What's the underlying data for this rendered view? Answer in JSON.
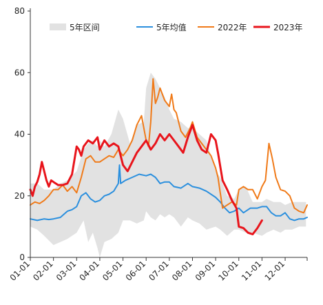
{
  "chart_data": {
    "type": "line",
    "title": "",
    "xlabel": "",
    "ylabel": "",
    "ylim": [
      0,
      80
    ],
    "yticks": [
      0,
      20,
      40,
      60,
      80
    ],
    "xlim": [
      1,
      12.95
    ],
    "xticks": [
      {
        "value": 1,
        "label": "01-01"
      },
      {
        "value": 2,
        "label": "02-01"
      },
      {
        "value": 3,
        "label": "03-01"
      },
      {
        "value": 4,
        "label": "04-01"
      },
      {
        "value": 5,
        "label": "05-01"
      },
      {
        "value": 6,
        "label": "06-01"
      },
      {
        "value": 7,
        "label": "07-01"
      },
      {
        "value": 8,
        "label": "08-01"
      },
      {
        "value": 9,
        "label": "09-01"
      },
      {
        "value": 10,
        "label": "10-01"
      },
      {
        "value": 11,
        "label": "11-01"
      },
      {
        "value": 12,
        "label": "12-01"
      }
    ],
    "grid": false,
    "legend": "top",
    "band": {
      "name": "5年区间",
      "color": "#e2e2e2",
      "x": [
        1,
        1.3,
        1.6,
        2,
        2.3,
        2.6,
        3,
        3.3,
        3.5,
        3.7,
        3.9,
        4,
        4.2,
        4.5,
        4.8,
        5,
        5.3,
        5.6,
        5.9,
        6,
        6.2,
        6.4,
        6.6,
        6.8,
        7,
        7.2,
        7.5,
        7.8,
        8,
        8.3,
        8.6,
        9,
        9.2,
        9.5,
        9.8,
        10,
        10.3,
        10.6,
        11,
        11.2,
        11.5,
        11.8,
        12,
        12.3,
        12.6,
        12.9
      ],
      "upper": [
        24,
        24,
        22,
        22,
        24,
        25,
        28,
        35,
        37,
        38,
        36,
        38,
        36,
        40,
        48,
        45,
        37,
        43,
        44,
        55,
        60,
        58,
        55,
        52,
        48,
        45,
        44,
        42,
        42,
        40,
        38,
        28,
        26,
        20,
        19,
        22,
        23,
        18,
        18,
        19,
        18,
        18,
        17,
        18,
        18,
        18
      ],
      "lower": [
        10,
        9,
        7,
        4,
        5,
        6,
        8,
        12,
        5,
        8,
        3,
        0,
        5,
        6,
        8,
        12,
        12,
        11,
        12,
        15,
        13,
        12,
        14,
        13,
        14,
        13,
        10,
        13,
        12,
        11,
        9,
        10,
        9,
        7,
        9,
        9,
        8,
        8,
        7,
        8,
        9,
        8,
        9,
        9,
        10,
        10
      ]
    },
    "series": [
      {
        "name": "5年均值",
        "color": "#2a8fde",
        "width": 2,
        "x": [
          1,
          1.3,
          1.6,
          1.8,
          2,
          2.3,
          2.6,
          2.8,
          3,
          3.2,
          3.4,
          3.6,
          3.8,
          4,
          4.2,
          4.4,
          4.6,
          4.8,
          4.85,
          4.9,
          5.1,
          5.4,
          5.7,
          6,
          6.2,
          6.4,
          6.6,
          6.8,
          7,
          7.2,
          7.5,
          7.8,
          8,
          8.3,
          8.6,
          9,
          9.2,
          9.4,
          9.6,
          9.8,
          10,
          10.2,
          10.5,
          10.8,
          11,
          11.2,
          11.4,
          11.6,
          11.8,
          12,
          12.2,
          12.4,
          12.6,
          12.8,
          12.95
        ],
        "y": [
          12.5,
          12,
          12.5,
          12.3,
          12.5,
          13,
          15,
          15.5,
          16.5,
          20,
          21,
          19,
          18,
          18.5,
          20,
          20.5,
          21.5,
          24,
          30,
          24,
          25,
          26,
          27,
          26.5,
          27,
          26,
          24,
          24.5,
          24.5,
          23,
          22.5,
          24,
          23,
          22.5,
          21.5,
          19.5,
          18,
          16,
          14.5,
          15,
          16,
          14.5,
          16,
          16,
          16.5,
          16.5,
          14.5,
          13.5,
          13.5,
          14.5,
          12.5,
          12,
          12.5,
          12.5,
          13
        ]
      },
      {
        "name": "2022年",
        "color": "#f07a18",
        "width": 2,
        "x": [
          1,
          1.2,
          1.4,
          1.6,
          1.8,
          2,
          2.2,
          2.4,
          2.6,
          2.8,
          3,
          3.2,
          3.4,
          3.6,
          3.8,
          4,
          4.2,
          4.4,
          4.6,
          4.8,
          5,
          5.2,
          5.4,
          5.6,
          5.8,
          6,
          6.1,
          6.2,
          6.3,
          6.4,
          6.5,
          6.6,
          6.8,
          7,
          7.1,
          7.2,
          7.3,
          7.5,
          7.7,
          7.9,
          8,
          8.2,
          8.4,
          8.6,
          8.8,
          9,
          9.1,
          9.2,
          9.3,
          9.5,
          9.7,
          9.9,
          10,
          10.2,
          10.4,
          10.6,
          10.8,
          11,
          11.15,
          11.3,
          11.45,
          11.6,
          11.8,
          12,
          12.2,
          12.4,
          12.6,
          12.8,
          12.95
        ],
        "y": [
          17,
          18,
          17.5,
          18.5,
          20,
          22,
          22,
          23.5,
          21.5,
          23,
          21,
          26,
          32,
          33,
          31,
          31,
          32,
          33,
          32.5,
          35,
          33,
          35,
          38,
          43,
          46,
          38,
          36,
          44,
          58,
          50,
          52,
          55,
          51,
          49,
          53,
          48,
          47,
          41,
          39,
          42,
          44,
          39,
          37,
          35,
          33,
          29,
          26,
          21,
          16,
          17,
          18,
          17,
          22,
          23,
          22,
          22,
          19,
          23,
          25,
          37,
          32,
          26,
          22,
          21.5,
          20,
          16,
          15,
          14.5,
          17
        ]
      },
      {
        "name": "2023年",
        "color": "#e8141b",
        "width": 3,
        "x": [
          1,
          1.1,
          1.2,
          1.3,
          1.4,
          1.5,
          1.6,
          1.7,
          1.8,
          1.9,
          2,
          2.2,
          2.4,
          2.6,
          2.8,
          3,
          3.1,
          3.2,
          3.3,
          3.5,
          3.7,
          3.9,
          4,
          4.2,
          4.4,
          4.6,
          4.8,
          5,
          5.2,
          5.4,
          5.6,
          5.8,
          6,
          6.2,
          6.4,
          6.6,
          6.8,
          7,
          7.2,
          7.4,
          7.6,
          7.8,
          8,
          8.2,
          8.4,
          8.6,
          8.8,
          9,
          9.1,
          9.3,
          9.5,
          9.7,
          9.9,
          10,
          10.2,
          10.4,
          10.6,
          10.8,
          11
        ],
        "y": [
          22,
          20,
          23,
          24.5,
          27,
          31,
          28,
          25,
          23,
          25,
          24.5,
          23.5,
          23.5,
          24,
          27,
          36,
          35,
          33,
          36,
          38,
          37,
          39,
          35,
          38,
          36,
          37,
          36,
          30,
          28,
          31,
          34,
          36,
          38,
          35,
          37,
          40,
          38,
          40,
          38,
          36,
          34,
          39,
          43,
          38,
          35,
          34,
          40,
          38,
          34,
          25,
          22,
          18.5,
          16,
          10,
          9.5,
          8,
          7.5,
          9.5,
          12
        ]
      }
    ]
  },
  "legend": [
    {
      "kind": "band",
      "label": "5年区间",
      "color": "#e2e2e2"
    },
    {
      "kind": "line",
      "label": "5年均值",
      "color": "#2a8fde"
    },
    {
      "kind": "line",
      "label": "2022年",
      "color": "#f07a18"
    },
    {
      "kind": "line",
      "label": "2023年",
      "color": "#e8141b"
    }
  ]
}
